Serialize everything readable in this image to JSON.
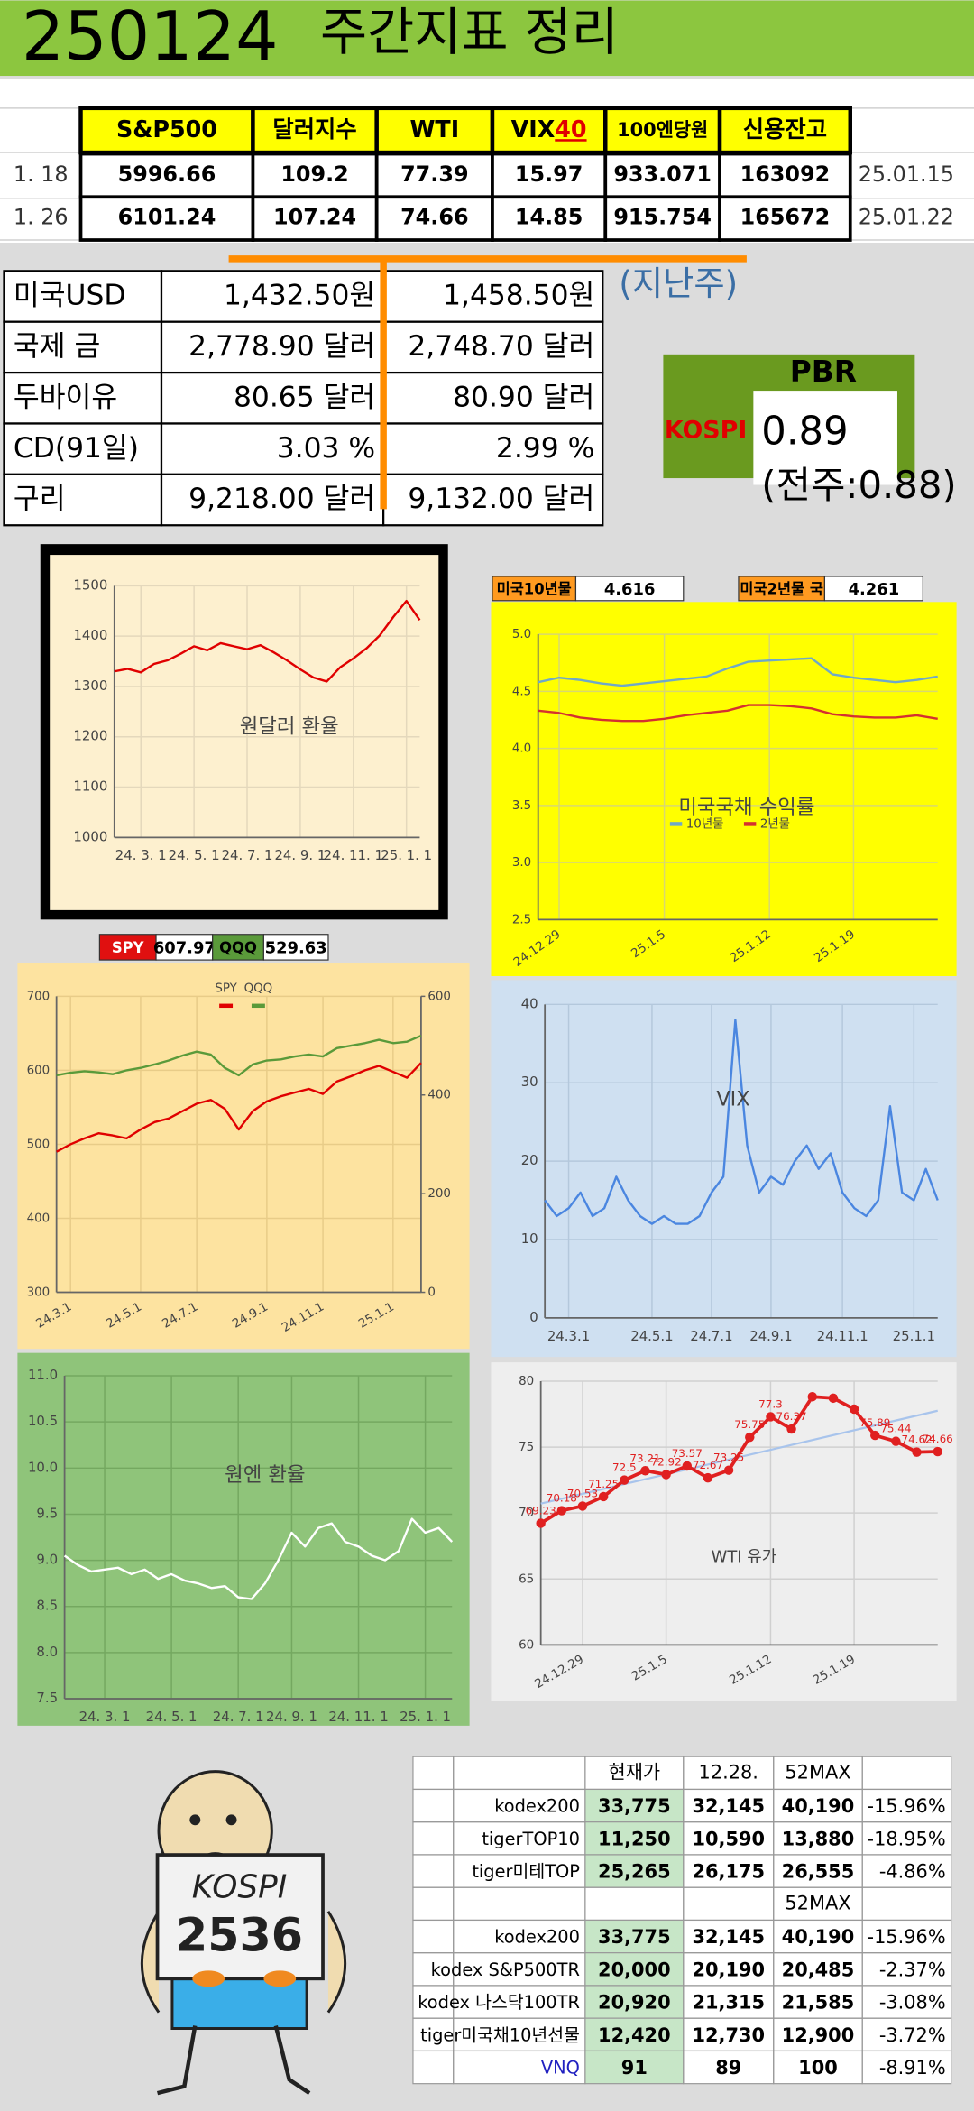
{
  "header": {
    "date": "250124",
    "title": "주간지표 정리"
  },
  "table1": {
    "header": [
      "S&P500",
      "달러지수",
      "WTI",
      "VIX",
      "100엔당원",
      "신용잔고"
    ],
    "vix_suffix": "40",
    "rows": [
      {
        "label": "1. 18",
        "cells": [
          "5996.66",
          "109.2",
          "77.39",
          "15.97",
          "933.071",
          "163092"
        ],
        "date": "25.01.15"
      },
      {
        "label": "1. 26",
        "cells": [
          "6101.24",
          "107.24",
          "74.66",
          "14.85",
          "915.754",
          "165672"
        ],
        "date": "25.01.22"
      }
    ]
  },
  "table2": {
    "last_week_label": "(지난주)",
    "rows": [
      [
        "미국USD",
        "1,432.50원",
        "1,458.50원"
      ],
      [
        "국제 금",
        "2,778.90 달러",
        "2,748.70 달러"
      ],
      [
        "두바이유",
        "80.65 달러",
        "80.90 달러"
      ],
      [
        "CD(91일)",
        "3.03 %",
        "2.99 %"
      ],
      [
        "구리",
        "9,218.00 달러",
        "9,132.00 달러"
      ]
    ]
  },
  "pbr": {
    "title": "PBR",
    "index": "KOSPI",
    "value": "0.89",
    "previous": "(전주:0.88)"
  },
  "chart_data": [
    {
      "type": "line",
      "title": "원달러 환율",
      "categories": [
        null,
        null,
        "24. 3. 1",
        null,
        null,
        null,
        "24. 5. 1",
        null,
        null,
        null,
        "24. 7. 1",
        null,
        null,
        null,
        "24. 9. 1",
        null,
        null,
        null,
        "24. 11. 1",
        null,
        null,
        null,
        "25. 1. 1",
        null
      ],
      "series": [
        {
          "name": null,
          "color": "#e00000",
          "values": [
            1330,
            1335,
            1328,
            1345,
            1352,
            1365,
            1380,
            1372,
            1386,
            1380,
            1374,
            1382,
            1368,
            1352,
            1334,
            1318,
            1310,
            1338,
            1356,
            1376,
            1402,
            1438,
            1470,
            1432
          ]
        }
      ],
      "ylim": [
        1000,
        1500
      ],
      "yticks": [
        1000,
        1100,
        1200,
        1300,
        1400,
        1500
      ],
      "grid": true
    },
    {
      "type": "line",
      "title": "미국국채 수익률",
      "header": [
        {
          "label": "미국10년물",
          "value": "4.616"
        },
        {
          "label": "미국2년물 국",
          "value": "4.261"
        }
      ],
      "categories": [
        null,
        "24.12.29",
        null,
        null,
        null,
        null,
        "25.1.5",
        null,
        null,
        null,
        null,
        "25.1.12",
        null,
        null,
        null,
        "25.1.19",
        null,
        null,
        null,
        null
      ],
      "series": [
        {
          "name": "10년물",
          "color": "#6fa8c8",
          "values": [
            4.58,
            4.62,
            4.6,
            4.57,
            4.55,
            4.57,
            4.59,
            4.61,
            4.63,
            4.7,
            4.76,
            4.77,
            4.78,
            4.79,
            4.65,
            4.62,
            4.6,
            4.58,
            4.6,
            4.63
          ]
        },
        {
          "name": "2년물",
          "color": "#d43030",
          "values": [
            4.33,
            4.31,
            4.27,
            4.25,
            4.24,
            4.24,
            4.26,
            4.29,
            4.31,
            4.33,
            4.38,
            4.38,
            4.37,
            4.35,
            4.3,
            4.28,
            4.27,
            4.27,
            4.29,
            4.26
          ]
        }
      ],
      "ylim": [
        2.5,
        5.0
      ],
      "yticks": [
        2.5,
        {
          "value": 3,
          "label": "3.0"
        },
        3.5,
        {
          "value": 4,
          "label": "4.0"
        },
        4.5,
        {
          "value": 5,
          "label": "5.0"
        }
      ],
      "grid": true
    },
    {
      "type": "line",
      "header": [
        {
          "label": "SPY",
          "value": "607.97"
        },
        {
          "label": "QQQ",
          "value": "529.63"
        }
      ],
      "categories": [
        null,
        "24.3.1",
        null,
        null,
        null,
        null,
        "24.5.1",
        null,
        null,
        null,
        "24.7.1",
        null,
        null,
        null,
        null,
        "24.9.1",
        null,
        null,
        null,
        "24.11.1",
        null,
        null,
        null,
        null,
        "25.1.1",
        null,
        null
      ],
      "series": [
        {
          "name": "SPY",
          "color": "#e00000",
          "values": [
            490,
            500,
            508,
            515,
            512,
            508,
            520,
            530,
            535,
            545,
            555,
            560,
            548,
            520,
            545,
            558,
            565,
            570,
            575,
            568,
            585,
            592,
            600,
            606,
            598,
            590,
            610
          ]
        },
        {
          "name": "QQQ",
          "color": "#5a9a3a",
          "axis": "y2",
          "values": [
            440,
            445,
            448,
            446,
            442,
            450,
            455,
            462,
            470,
            480,
            488,
            482,
            455,
            440,
            462,
            470,
            472,
            478,
            482,
            478,
            495,
            500,
            505,
            512,
            505,
            508,
            520
          ]
        }
      ],
      "ylim": [
        300,
        700
      ],
      "yticks": [
        300,
        400,
        500,
        600,
        700
      ],
      "y2lim": [
        0,
        600
      ],
      "y2ticks": [
        0,
        200,
        400,
        600
      ],
      "grid": true
    },
    {
      "type": "line",
      "title": "VIX",
      "categories": [
        null,
        null,
        "24.3.1",
        null,
        null,
        null,
        null,
        null,
        null,
        "24.5.1",
        null,
        null,
        null,
        null,
        "24.7.1",
        null,
        null,
        null,
        null,
        "24.9.1",
        null,
        null,
        null,
        null,
        null,
        "24.11.1",
        null,
        null,
        null,
        null,
        null,
        "25.1.1",
        null,
        null
      ],
      "series": [
        {
          "name": null,
          "color": "#4a86e0",
          "values": [
            15,
            13,
            14,
            16,
            13,
            14,
            18,
            15,
            13,
            12,
            13,
            12,
            12,
            13,
            16,
            18,
            38,
            22,
            16,
            18,
            17,
            20,
            22,
            19,
            21,
            16,
            14,
            13,
            15,
            27,
            16,
            15,
            19,
            15
          ]
        }
      ],
      "ylim": [
        0,
        40
      ],
      "yticks": [
        0,
        10,
        20,
        30,
        40
      ],
      "grid": true
    },
    {
      "type": "line",
      "title": "원엔 환율",
      "categories": [
        null,
        null,
        null,
        "24. 3. 1",
        null,
        null,
        null,
        null,
        "24. 5. 1",
        null,
        null,
        null,
        null,
        "24. 7. 1",
        null,
        null,
        null,
        "24. 9. 1",
        null,
        null,
        null,
        null,
        "24. 11. 1",
        null,
        null,
        null,
        null,
        "25. 1. 1",
        null,
        null
      ],
      "series": [
        {
          "name": null,
          "color": "#ffffff",
          "values": [
            9.05,
            8.95,
            8.88,
            8.9,
            8.92,
            8.85,
            8.9,
            8.8,
            8.85,
            8.78,
            8.75,
            8.7,
            8.72,
            8.6,
            8.58,
            8.75,
            9.0,
            9.3,
            9.15,
            9.35,
            9.4,
            9.2,
            9.15,
            9.05,
            9.0,
            9.1,
            9.45,
            9.3,
            9.35,
            9.2
          ]
        }
      ],
      "ylim": [
        7.5,
        11.0
      ],
      "yticks": [
        7.5,
        {
          "value": 8,
          "label": "8.0"
        },
        8.5,
        {
          "value": 9,
          "label": "9.0"
        },
        9.5,
        {
          "value": 10,
          "label": "10.0"
        },
        10.5,
        {
          "value": 11,
          "label": "11.0"
        }
      ],
      "grid": true
    },
    {
      "type": "line",
      "title": "WTI 유가",
      "categories": [
        null,
        null,
        "24.12.29",
        null,
        null,
        null,
        "25.1.5",
        null,
        null,
        null,
        null,
        "25.1.12",
        null,
        null,
        null,
        "25.1.19",
        null,
        null,
        null,
        null
      ],
      "series": [
        {
          "name": null,
          "color": "#e02020",
          "values": [
            69.23,
            70.18,
            70.53,
            71.25,
            72.5,
            73.21,
            72.92,
            73.57,
            72.67,
            73.25,
            75.75,
            77.3,
            76.37,
            78.82,
            78.71,
            77.88,
            75.89,
            75.44,
            74.62,
            74.66
          ],
          "value_labels": [
            "69.23",
            "70.18",
            "70.53",
            "71.25",
            "72.5",
            "73.21",
            "72.92",
            "73.57",
            "72.67",
            "73.25",
            "75.75",
            "77.3",
            "76.37",
            null,
            null,
            null,
            "75.89",
            "75.44",
            "74.62",
            "74.66"
          ]
        }
      ],
      "ylim": [
        60,
        80
      ],
      "yticks": [
        60,
        65,
        70,
        75,
        80
      ],
      "grid": true,
      "trendline": true
    }
  ],
  "etf_table": {
    "header": [
      "현재가",
      "12.28.",
      "52MAX"
    ],
    "subheader": "52MAX",
    "rows": [
      [
        "kodex200",
        "33,775",
        "32,145",
        "40,190",
        "-15.96%"
      ],
      [
        "tigerTOP10",
        "11,250",
        "10,590",
        "13,880",
        "-18.95%"
      ],
      [
        "tiger미테TOP",
        "25,265",
        "26,175",
        "26,555",
        "-4.86%"
      ]
    ],
    "rows2": [
      [
        "kodex200",
        "33,775",
        "32,145",
        "40,190",
        "-15.96%"
      ],
      [
        "kodex S&P500TR",
        "20,000",
        "20,190",
        "20,485",
        "-2.37%"
      ],
      [
        "kodex 나스닥100TR",
        "20,920",
        "21,315",
        "21,585",
        "-3.08%"
      ],
      [
        "tiger미국채10년선물",
        "12,420",
        "12,730",
        "12,900",
        "-3.72%"
      ],
      [
        "VNQ",
        "91",
        "89",
        "100",
        "-8.91%"
      ]
    ]
  },
  "cartoon": {
    "sign_title": "KOSPI",
    "sign_value": "2536"
  }
}
